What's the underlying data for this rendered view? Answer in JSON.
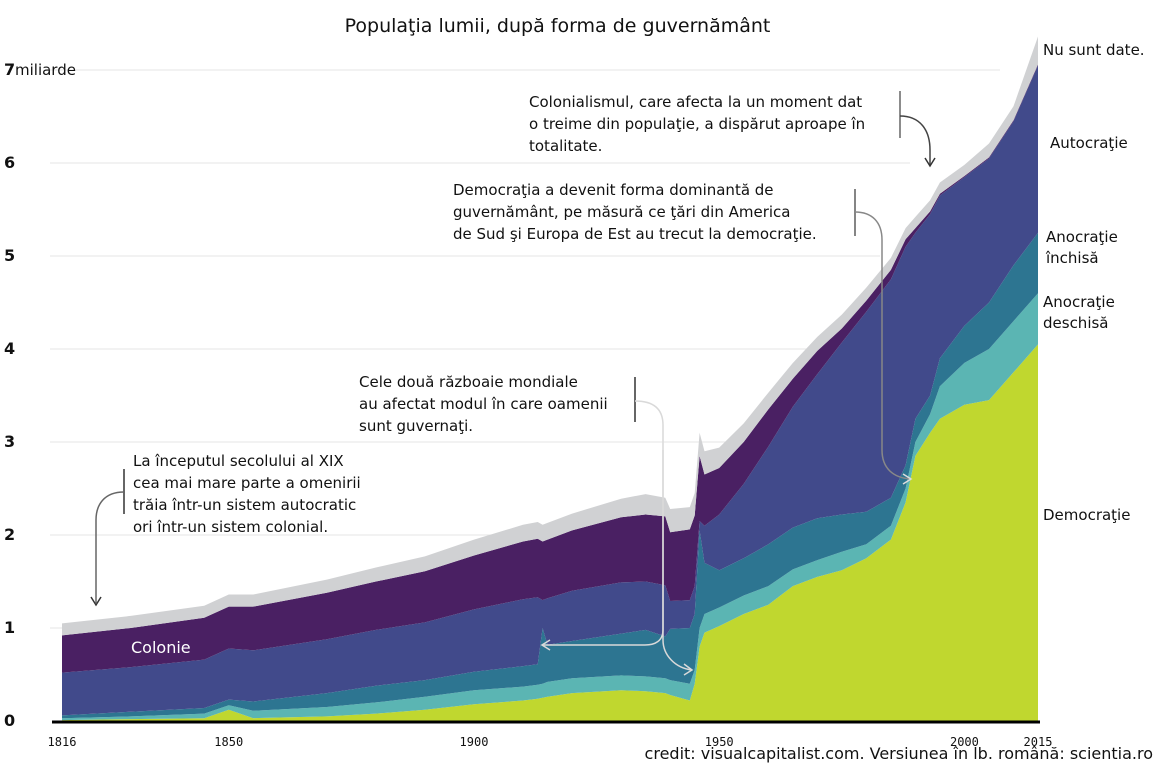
{
  "chart_data": {
    "type": "area",
    "stacked": true,
    "title": "Populaţia lumii, după forma de guvernământ",
    "xlabel": "",
    "ylabel": "miliarde",
    "y_unit_label": "miliarde",
    "xlim": [
      1816,
      2015
    ],
    "ylim": [
      0,
      7
    ],
    "yticks": [
      "0",
      "1",
      "2",
      "3",
      "4",
      "5",
      "6",
      "7"
    ],
    "xticks": [
      "1816",
      "1850",
      "1900",
      "1950",
      "2000",
      "2015"
    ],
    "grid": true,
    "x": [
      1816,
      1830,
      1845,
      1850,
      1855,
      1870,
      1880,
      1890,
      1900,
      1910,
      1913,
      1914,
      1915,
      1920,
      1930,
      1935,
      1939,
      1940,
      1944,
      1945,
      1946,
      1947,
      1950,
      1955,
      1960,
      1965,
      1970,
      1975,
      1980,
      1985,
      1988,
      1990,
      1993,
      1995,
      2000,
      2005,
      2010,
      2015
    ],
    "series": [
      {
        "name": "Democraţie",
        "color": "#c0d72f",
        "values": [
          0.01,
          0.02,
          0.03,
          0.12,
          0.03,
          0.05,
          0.08,
          0.12,
          0.18,
          0.22,
          0.24,
          0.25,
          0.26,
          0.3,
          0.33,
          0.32,
          0.3,
          0.28,
          0.22,
          0.4,
          0.8,
          0.95,
          1.02,
          1.15,
          1.25,
          1.45,
          1.55,
          1.62,
          1.75,
          1.95,
          2.35,
          2.85,
          3.1,
          3.25,
          3.4,
          3.45,
          3.75,
          4.05
        ]
      },
      {
        "name": "Anocraţie deschisă",
        "color": "#5bb5b3",
        "values": [
          0.02,
          0.03,
          0.05,
          0.05,
          0.08,
          0.1,
          0.12,
          0.14,
          0.15,
          0.15,
          0.15,
          0.15,
          0.16,
          0.16,
          0.16,
          0.16,
          0.16,
          0.16,
          0.18,
          0.15,
          0.2,
          0.2,
          0.2,
          0.2,
          0.2,
          0.18,
          0.18,
          0.2,
          0.15,
          0.15,
          0.15,
          0.15,
          0.2,
          0.35,
          0.45,
          0.55,
          0.55,
          0.55
        ]
      },
      {
        "name": "Anocraţie închisă",
        "color": "#2d7591",
        "values": [
          0.03,
          0.05,
          0.06,
          0.06,
          0.1,
          0.15,
          0.18,
          0.18,
          0.2,
          0.22,
          0.22,
          0.6,
          0.4,
          0.4,
          0.45,
          0.5,
          0.45,
          0.55,
          0.6,
          0.6,
          1.05,
          0.55,
          0.4,
          0.4,
          0.45,
          0.45,
          0.45,
          0.4,
          0.35,
          0.3,
          0.25,
          0.25,
          0.2,
          0.3,
          0.4,
          0.5,
          0.6,
          0.65
        ]
      },
      {
        "name": "Autocraţie",
        "color": "#414a8b",
        "values": [
          0.46,
          0.48,
          0.52,
          0.55,
          0.55,
          0.58,
          0.6,
          0.62,
          0.67,
          0.72,
          0.72,
          0.3,
          0.5,
          0.54,
          0.55,
          0.52,
          0.55,
          0.3,
          0.3,
          0.3,
          0.1,
          0.4,
          0.6,
          0.8,
          1.05,
          1.3,
          1.55,
          1.85,
          2.15,
          2.35,
          2.35,
          2.0,
          1.95,
          1.75,
          1.6,
          1.55,
          1.55,
          1.8
        ]
      },
      {
        "name": "Colonie",
        "color": "#4a2063",
        "values": [
          0.4,
          0.42,
          0.45,
          0.45,
          0.47,
          0.5,
          0.52,
          0.55,
          0.58,
          0.62,
          0.63,
          0.63,
          0.63,
          0.65,
          0.7,
          0.72,
          0.74,
          0.74,
          0.76,
          0.76,
          0.7,
          0.55,
          0.5,
          0.45,
          0.4,
          0.3,
          0.25,
          0.15,
          0.12,
          0.1,
          0.08,
          0.05,
          0.03,
          0.02,
          0.01,
          0.01,
          0.01,
          0.01
        ]
      },
      {
        "name": "Nu sunt date.",
        "color": "#d0d1d3",
        "values": [
          0.13,
          0.13,
          0.13,
          0.13,
          0.13,
          0.14,
          0.15,
          0.16,
          0.17,
          0.18,
          0.18,
          0.18,
          0.18,
          0.18,
          0.2,
          0.22,
          0.2,
          0.25,
          0.24,
          0.24,
          0.25,
          0.25,
          0.22,
          0.2,
          0.18,
          0.17,
          0.15,
          0.15,
          0.14,
          0.13,
          0.12,
          0.12,
          0.12,
          0.12,
          0.12,
          0.15,
          0.15,
          0.3
        ]
      }
    ],
    "legend_labels": [
      {
        "name": "Nu sunt date.",
        "lines": [
          "Nu sunt date."
        ]
      },
      {
        "name": "Autocraţie",
        "lines": [
          "Autocraţie"
        ]
      },
      {
        "name": "Anocraţie închisă",
        "lines": [
          "Anocraţie",
          "închisă"
        ]
      },
      {
        "name": "Anocraţie deschisă",
        "lines": [
          "Anocraţie",
          "deschisă"
        ]
      },
      {
        "name": "Democraţie",
        "lines": [
          "Democraţie"
        ]
      }
    ],
    "legend_placement": "right (inline labels)",
    "inline_series_label": "Colonie",
    "annotations": [
      {
        "id": "early-19th",
        "lines": [
          "La începutul secolului al XIX",
          "cea mai mare parte a omenirii",
          "trăia într-un sistem autocratic",
          "ori într-un sistem colonial."
        ],
        "points_to_year": 1823
      },
      {
        "id": "world-wars",
        "lines": [
          "Cele două războaie mondiale",
          "au afectat modul în care oamenii",
          "sunt guvernaţi."
        ],
        "points_to_years": [
          1914,
          1945
        ]
      },
      {
        "id": "democracy-dominant",
        "lines": [
          "Democraţia a devenit forma dominantă de",
          "guvernământ, pe măsură ce ţări din America",
          "de Sud şi Europa de Est au trecut la democraţie."
        ],
        "points_to_year": 1990
      },
      {
        "id": "colonialism",
        "lines": [
          "Colonialismul, care afecta la un moment dat",
          "o treime din populaţie, a dispărut aproape în",
          "totalitate."
        ],
        "points_to_year": 1992
      }
    ]
  },
  "credit": "credit: visualcapitalist.com. Versiunea în lb. română: scientia.ro"
}
